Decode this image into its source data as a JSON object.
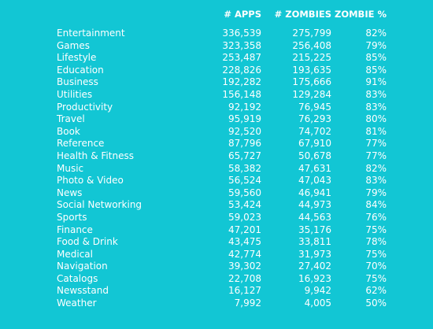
{
  "chart_data": {
    "type": "table",
    "columns": [
      "",
      "# APPS",
      "# ZOMBIES",
      "ZOMBIE %"
    ],
    "rows": [
      [
        "Entertainment",
        "336,539",
        "275,799",
        "82%"
      ],
      [
        "Games",
        "323,358",
        "256,408",
        "79%"
      ],
      [
        "Lifestyle",
        "253,487",
        "215,225",
        "85%"
      ],
      [
        "Education",
        "228,826",
        "193,635",
        "85%"
      ],
      [
        "Business",
        "192,282",
        "175,666",
        "91%"
      ],
      [
        "Utilities",
        "156,148",
        "129,284",
        "83%"
      ],
      [
        "Productivity",
        "92,192",
        "76,945",
        "83%"
      ],
      [
        "Travel",
        "95,919",
        "76,293",
        "80%"
      ],
      [
        "Book",
        "92,520",
        "74,702",
        "81%"
      ],
      [
        "Reference",
        "87,796",
        "67,910",
        "77%"
      ],
      [
        "Health & Fitness",
        "65,727",
        "50,678",
        "77%"
      ],
      [
        "Music",
        "58,382",
        "47,631",
        "82%"
      ],
      [
        "Photo & Video",
        "56,524",
        "47,043",
        "83%"
      ],
      [
        "News",
        "59,560",
        "46,941",
        "79%"
      ],
      [
        "Social Networking",
        "53,424",
        "44,973",
        "84%"
      ],
      [
        "Sports",
        "59,023",
        "44,563",
        "76%"
      ],
      [
        "Finance",
        "47,201",
        "35,176",
        "75%"
      ],
      [
        "Food & Drink",
        "43,475",
        "33,811",
        "78%"
      ],
      [
        "Medical",
        "42,774",
        "31,973",
        "75%"
      ],
      [
        "Navigation",
        "39,302",
        "27,402",
        "70%"
      ],
      [
        "Catalogs",
        "22,708",
        "16,923",
        "75%"
      ],
      [
        "Newsstand",
        "16,127",
        "9,942",
        "62%"
      ],
      [
        "Weather",
        "7,992",
        "4,005",
        "50%"
      ]
    ]
  },
  "colors": {
    "background": "#12c6d4",
    "text": "#ffffff"
  }
}
